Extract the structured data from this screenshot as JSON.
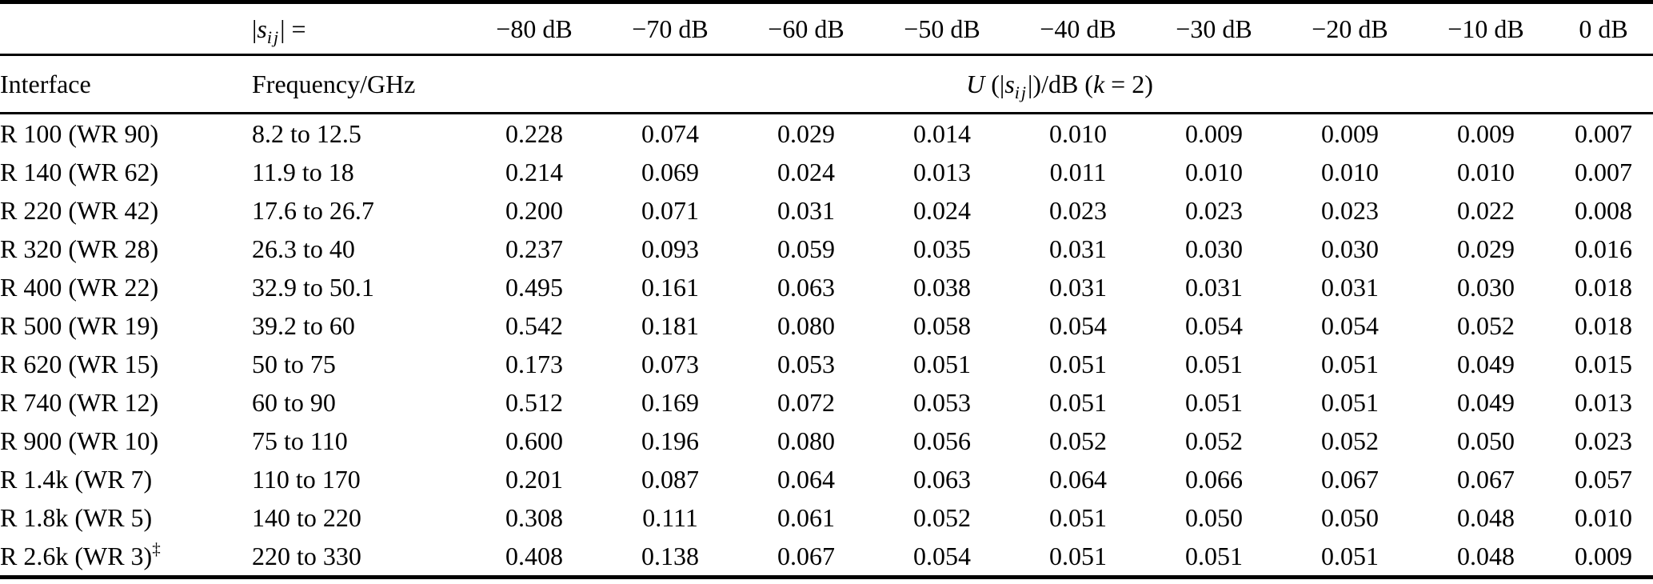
{
  "page": {
    "background": "#ffffff",
    "text_color": "#000000",
    "rule_color": "#000000"
  },
  "table": {
    "header_row1": {
      "s_label": {
        "pre": "|",
        "s": "s",
        "sub": "ij",
        "post": "| ="
      },
      "db_columns": [
        "−80 dB",
        "−70 dB",
        "−60 dB",
        "−50 dB",
        "−40 dB",
        "−30 dB",
        "−20 dB",
        "−10 dB",
        "0 dB"
      ]
    },
    "header_row2": {
      "interface_label": "Interface",
      "frequency_label": "Frequency/GHz",
      "u_label": {
        "u": "U",
        "open": " (|",
        "s": "s",
        "sub": "ij",
        "close": "|)/dB (",
        "k": "k",
        "end": " = 2)"
      }
    },
    "rows": [
      {
        "interface": "R 100 (WR 90)",
        "marker": "",
        "frequency": "8.2 to 12.5",
        "values": [
          "0.228",
          "0.074",
          "0.029",
          "0.014",
          "0.010",
          "0.009",
          "0.009",
          "0.009",
          "0.007"
        ]
      },
      {
        "interface": "R 140 (WR 62)",
        "marker": "",
        "frequency": "11.9 to 18",
        "values": [
          "0.214",
          "0.069",
          "0.024",
          "0.013",
          "0.011",
          "0.010",
          "0.010",
          "0.010",
          "0.007"
        ]
      },
      {
        "interface": "R 220 (WR 42)",
        "marker": "",
        "frequency": "17.6 to 26.7",
        "values": [
          "0.200",
          "0.071",
          "0.031",
          "0.024",
          "0.023",
          "0.023",
          "0.023",
          "0.022",
          "0.008"
        ]
      },
      {
        "interface": "R 320 (WR 28)",
        "marker": "",
        "frequency": "26.3 to 40",
        "values": [
          "0.237",
          "0.093",
          "0.059",
          "0.035",
          "0.031",
          "0.030",
          "0.030",
          "0.029",
          "0.016"
        ]
      },
      {
        "interface": "R 400 (WR 22)",
        "marker": "",
        "frequency": "32.9 to 50.1",
        "values": [
          "0.495",
          "0.161",
          "0.063",
          "0.038",
          "0.031",
          "0.031",
          "0.031",
          "0.030",
          "0.018"
        ]
      },
      {
        "interface": "R 500 (WR 19)",
        "marker": "",
        "frequency": "39.2 to 60",
        "values": [
          "0.542",
          "0.181",
          "0.080",
          "0.058",
          "0.054",
          "0.054",
          "0.054",
          "0.052",
          "0.018"
        ]
      },
      {
        "interface": "R 620 (WR 15)",
        "marker": "",
        "frequency": "50 to 75",
        "values": [
          "0.173",
          "0.073",
          "0.053",
          "0.051",
          "0.051",
          "0.051",
          "0.051",
          "0.049",
          "0.015"
        ]
      },
      {
        "interface": "R 740 (WR 12)",
        "marker": "",
        "frequency": "60 to 90",
        "values": [
          "0.512",
          "0.169",
          "0.072",
          "0.053",
          "0.051",
          "0.051",
          "0.051",
          "0.049",
          "0.013"
        ]
      },
      {
        "interface": "R 900 (WR 10)",
        "marker": "",
        "frequency": "75 to 110",
        "values": [
          "0.600",
          "0.196",
          "0.080",
          "0.056",
          "0.052",
          "0.052",
          "0.052",
          "0.050",
          "0.023"
        ]
      },
      {
        "interface": "R 1.4k (WR 7)",
        "marker": "",
        "frequency": "110 to 170",
        "values": [
          "0.201",
          "0.087",
          "0.064",
          "0.063",
          "0.064",
          "0.066",
          "0.067",
          "0.067",
          "0.057"
        ]
      },
      {
        "interface": "R 1.8k (WR 5)",
        "marker": "",
        "frequency": "140 to 220",
        "values": [
          "0.308",
          "0.111",
          "0.061",
          "0.052",
          "0.051",
          "0.050",
          "0.050",
          "0.048",
          "0.010"
        ]
      },
      {
        "interface": "R 2.6k (WR 3)",
        "marker": "‡",
        "frequency": "220 to 330",
        "values": [
          "0.408",
          "0.138",
          "0.067",
          "0.054",
          "0.051",
          "0.051",
          "0.051",
          "0.048",
          "0.009"
        ]
      }
    ]
  }
}
